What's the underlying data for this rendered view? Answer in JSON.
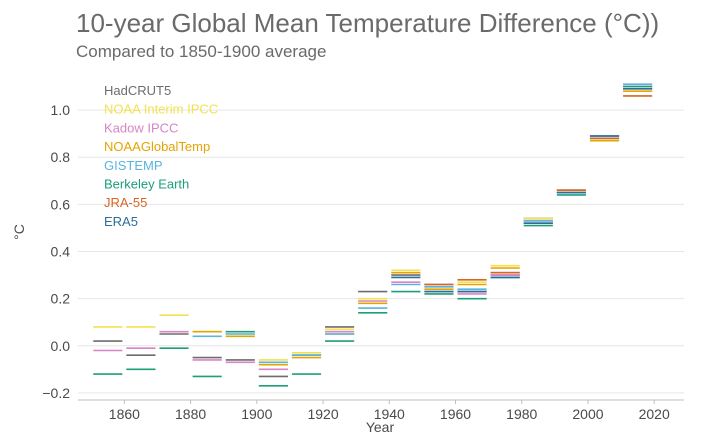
{
  "chart_data": {
    "type": "line",
    "title": "10-year Global Mean Temperature Difference (°C))",
    "subtitle": "Compared to 1850-1900 average",
    "xlabel": "Year",
    "ylabel": "°C",
    "xlim": [
      1846,
      2029
    ],
    "ylim": [
      -0.23,
      1.17
    ],
    "x_ticks": [
      1860,
      1880,
      1900,
      1920,
      1940,
      1960,
      1980,
      2000,
      2020
    ],
    "x_tick_labels": [
      "1860",
      "1880",
      "1900",
      "1920",
      "1940",
      "1960",
      "1980",
      "2000",
      "2020"
    ],
    "y_ticks": [
      -0.2,
      0.0,
      0.2,
      0.4,
      0.6,
      0.8,
      1.0
    ],
    "y_tick_labels": [
      "−0.2",
      "0.0",
      "0.2",
      "0.4",
      "0.6",
      "0.8",
      "1.0"
    ],
    "grid": true,
    "legend_position": "top-left",
    "decades": [
      [
        1850,
        1860
      ],
      [
        1860,
        1870
      ],
      [
        1870,
        1880
      ],
      [
        1880,
        1890
      ],
      [
        1890,
        1900
      ],
      [
        1900,
        1910
      ],
      [
        1910,
        1920
      ],
      [
        1920,
        1930
      ],
      [
        1930,
        1940
      ],
      [
        1940,
        1950
      ],
      [
        1950,
        1960
      ],
      [
        1960,
        1970
      ],
      [
        1970,
        1980
      ],
      [
        1980,
        1990
      ],
      [
        1990,
        2000
      ],
      [
        2000,
        2010
      ],
      [
        2010,
        2020
      ]
    ],
    "series": [
      {
        "name": "HadCRUT5",
        "color": "#6d6d6d",
        "values": [
          0.02,
          -0.04,
          0.05,
          -0.05,
          -0.06,
          -0.13,
          -0.04,
          0.08,
          0.23,
          0.3,
          0.26,
          0.23,
          0.3,
          0.54,
          0.66,
          0.89,
          1.1
        ]
      },
      {
        "name": "NOAA Interim IPCC",
        "color": "#f2e24d",
        "values": [
          0.08,
          0.08,
          0.13,
          0.06,
          0.05,
          -0.06,
          -0.03,
          0.07,
          0.2,
          0.32,
          0.25,
          0.27,
          0.34,
          0.54,
          0.66,
          0.88,
          1.09
        ]
      },
      {
        "name": "Kadow IPCC",
        "color": "#d984c4",
        "values": [
          -0.02,
          -0.01,
          0.06,
          -0.06,
          -0.07,
          -0.1,
          -0.04,
          0.06,
          0.19,
          0.27,
          0.23,
          0.22,
          0.3,
          0.53,
          0.65,
          0.89,
          1.1
        ]
      },
      {
        "name": "NOAAGlobalTemp",
        "color": "#e5a400",
        "values": [
          null,
          null,
          null,
          0.06,
          0.04,
          -0.08,
          -0.05,
          0.05,
          0.18,
          0.31,
          0.24,
          0.26,
          0.33,
          0.53,
          0.65,
          0.87,
          1.08
        ]
      },
      {
        "name": "GISTEMP",
        "color": "#5ab4e0",
        "values": [
          null,
          null,
          null,
          0.04,
          0.05,
          -0.07,
          -0.04,
          0.05,
          0.16,
          0.26,
          0.25,
          0.24,
          0.31,
          0.53,
          0.65,
          0.89,
          1.11
        ]
      },
      {
        "name": "Berkeley Earth",
        "color": "#1d9e7a",
        "values": [
          -0.12,
          -0.1,
          -0.01,
          -0.13,
          0.06,
          -0.17,
          -0.12,
          0.02,
          0.14,
          0.23,
          0.22,
          0.2,
          0.29,
          0.51,
          0.64,
          0.88,
          1.1
        ]
      },
      {
        "name": "JRA-55",
        "color": "#d9651f",
        "values": [
          null,
          null,
          null,
          null,
          null,
          null,
          null,
          null,
          null,
          null,
          0.26,
          0.28,
          0.31,
          0.52,
          0.66,
          0.88,
          1.06
        ]
      },
      {
        "name": "ERA5",
        "color": "#2a6e9c",
        "values": [
          null,
          null,
          null,
          null,
          null,
          null,
          null,
          null,
          null,
          0.29,
          0.23,
          0.23,
          0.29,
          0.52,
          0.65,
          0.89,
          1.09
        ]
      }
    ]
  },
  "colors": {
    "title": "#6a6a6a",
    "axis_text": "#4a4a4a",
    "grid": "#e6e6e6",
    "axis_line": "#bfbfbf"
  }
}
